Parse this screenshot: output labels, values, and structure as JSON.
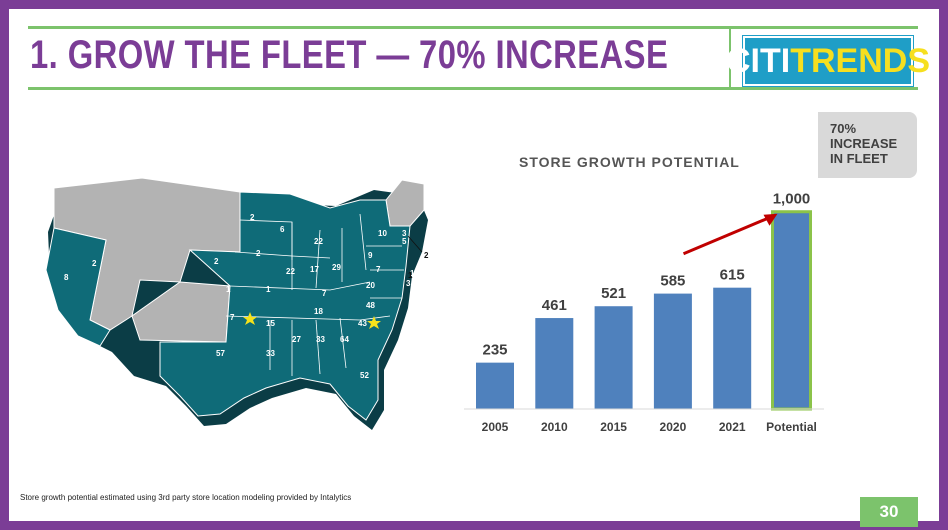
{
  "header": {
    "title": "1. GROW THE FLEET — 70% INCREASE",
    "logo_part1": "CITI",
    "logo_part2": "TRENDS"
  },
  "callout": {
    "text": "70%\nINCREASE\nIN FLEET"
  },
  "map": {
    "state_counts": [
      "2",
      "6",
      "22",
      "10",
      "3",
      "5",
      "2",
      "2",
      "2",
      "22",
      "17",
      "29",
      "9",
      "7",
      "1",
      "1",
      "3",
      "1",
      "8",
      "7",
      "20",
      "48",
      "7",
      "15",
      "18",
      "43",
      "57",
      "33",
      "27",
      "33",
      "64",
      "52",
      "8",
      "2"
    ]
  },
  "chart_data": {
    "type": "bar",
    "title": "STORE GROWTH POTENTIAL",
    "categories": [
      "2005",
      "2010",
      "2015",
      "2020",
      "2021",
      "Potential"
    ],
    "values": [
      235,
      461,
      521,
      585,
      615,
      1000
    ],
    "value_labels": [
      "235",
      "461",
      "521",
      "585",
      "615",
      "1,000"
    ],
    "ylim": [
      0,
      1100
    ],
    "colors": {
      "bar": "#4f81bd",
      "highlight_border": "#8bc34a",
      "arrow": "#c00000"
    }
  },
  "footer": {
    "footnote": "Store growth potential estimated using 3rd party store location modeling provided by Intalytics",
    "page": "30"
  }
}
